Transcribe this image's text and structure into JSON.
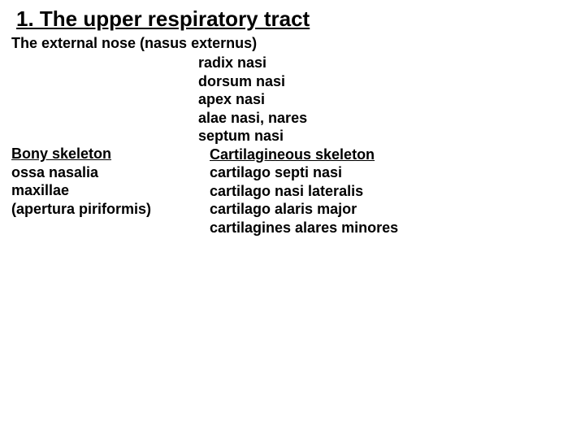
{
  "title": "1. The upper respiratory tract",
  "subtitle": "The external nose (nasus externus)",
  "center_list": [
    "radix nasi",
    "dorsum nasi",
    "apex nasi",
    "alae nasi, nares",
    "septum nasi"
  ],
  "left": {
    "heading": "Bony skeleton",
    "items": [
      "ossa nasalia",
      "maxillae",
      "(apertura piriformis)"
    ]
  },
  "right": {
    "heading": "Cartilagineous skeleton",
    "items": [
      "cartilago septi nasi",
      "cartilago nasi lateralis",
      "cartilago alaris major",
      "cartilagines alares minores"
    ]
  },
  "colors": {
    "background": "#ffffff",
    "text": "#000000"
  },
  "fonts": {
    "title_size_pt": 26,
    "body_size_pt": 18,
    "weight": "bold",
    "family": "Arial"
  }
}
